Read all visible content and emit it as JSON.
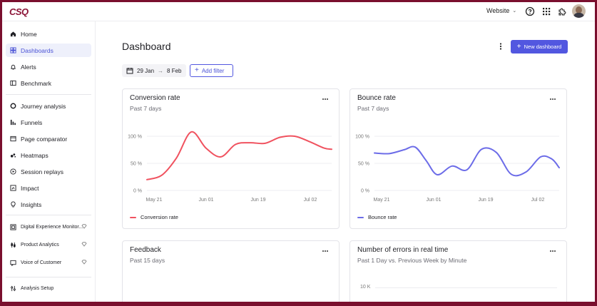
{
  "app": {
    "logo": "CSQ"
  },
  "topbar": {
    "website_label": "Website"
  },
  "sidebar": {
    "items": [
      {
        "label": "Home"
      },
      {
        "label": "Dashboards"
      },
      {
        "label": "Alerts"
      },
      {
        "label": "Benchmark"
      },
      {
        "label": "Journey analysis"
      },
      {
        "label": "Funnels"
      },
      {
        "label": "Page comparator"
      },
      {
        "label": "Heatmaps"
      },
      {
        "label": "Session replays"
      },
      {
        "label": "Impact"
      },
      {
        "label": "Insights"
      },
      {
        "label": "Digital Experience Monitor..."
      },
      {
        "label": "Product Analytics"
      },
      {
        "label": "Voice of Customer"
      },
      {
        "label": "Analysis Setup"
      }
    ]
  },
  "header": {
    "title": "Dashboard",
    "new_dashboard_label": "New dashboard",
    "date_start": "29 Jan",
    "date_end": "8 Feb",
    "add_filter_label": "Add filter"
  },
  "cards": {
    "conversion": {
      "title": "Conversion rate",
      "subtitle": "Past 7 days",
      "legend": "Conversion rate"
    },
    "bounce": {
      "title": "Bounce rate",
      "subtitle": "Past 7 days",
      "legend": "Bounce rate"
    },
    "feedback": {
      "title": "Feedback",
      "subtitle": "Past 15 days"
    },
    "errors": {
      "title": "Number of errors in real time",
      "subtitle": "Past 1 Day vs. Previous Week by Minute",
      "y_tick": "10 K"
    }
  },
  "colors": {
    "accent": "#5257e0",
    "conversion_line": "#f0525f",
    "bounce_line": "#6c6ce8",
    "brand": "#8b1336"
  },
  "chart_data": [
    {
      "type": "line",
      "title": "Conversion rate",
      "x_ticks": [
        "May 21",
        "Jun 01",
        "Jun 19",
        "Jul 02"
      ],
      "y_ticks": [
        "100 %",
        "50 %",
        "0 %"
      ],
      "ylim": [
        0,
        100
      ],
      "x": [
        0,
        0.08,
        0.16,
        0.24,
        0.32,
        0.4,
        0.48,
        0.56,
        0.64,
        0.72,
        0.8,
        0.88,
        0.96,
        1.0
      ],
      "series": [
        {
          "name": "Conversion rate",
          "values": [
            20,
            28,
            60,
            108,
            78,
            62,
            85,
            88,
            87,
            98,
            100,
            90,
            78,
            76
          ]
        }
      ],
      "grid": true,
      "legend_position": "bottom-left"
    },
    {
      "type": "line",
      "title": "Bounce rate",
      "x_ticks": [
        "May 21",
        "Jun 01",
        "Jun 19",
        "Jul 02"
      ],
      "y_ticks": [
        "100 %",
        "50 %",
        "0 %"
      ],
      "ylim": [
        0,
        100
      ],
      "x": [
        0,
        0.08,
        0.16,
        0.22,
        0.28,
        0.34,
        0.42,
        0.5,
        0.58,
        0.66,
        0.74,
        0.82,
        0.9,
        0.96,
        1.0
      ],
      "series": [
        {
          "name": "Bounce rate",
          "values": [
            69,
            68,
            75,
            80,
            55,
            29,
            45,
            38,
            76,
            70,
            30,
            34,
            62,
            58,
            42
          ]
        }
      ],
      "grid": true,
      "legend_position": "bottom-left"
    }
  ]
}
